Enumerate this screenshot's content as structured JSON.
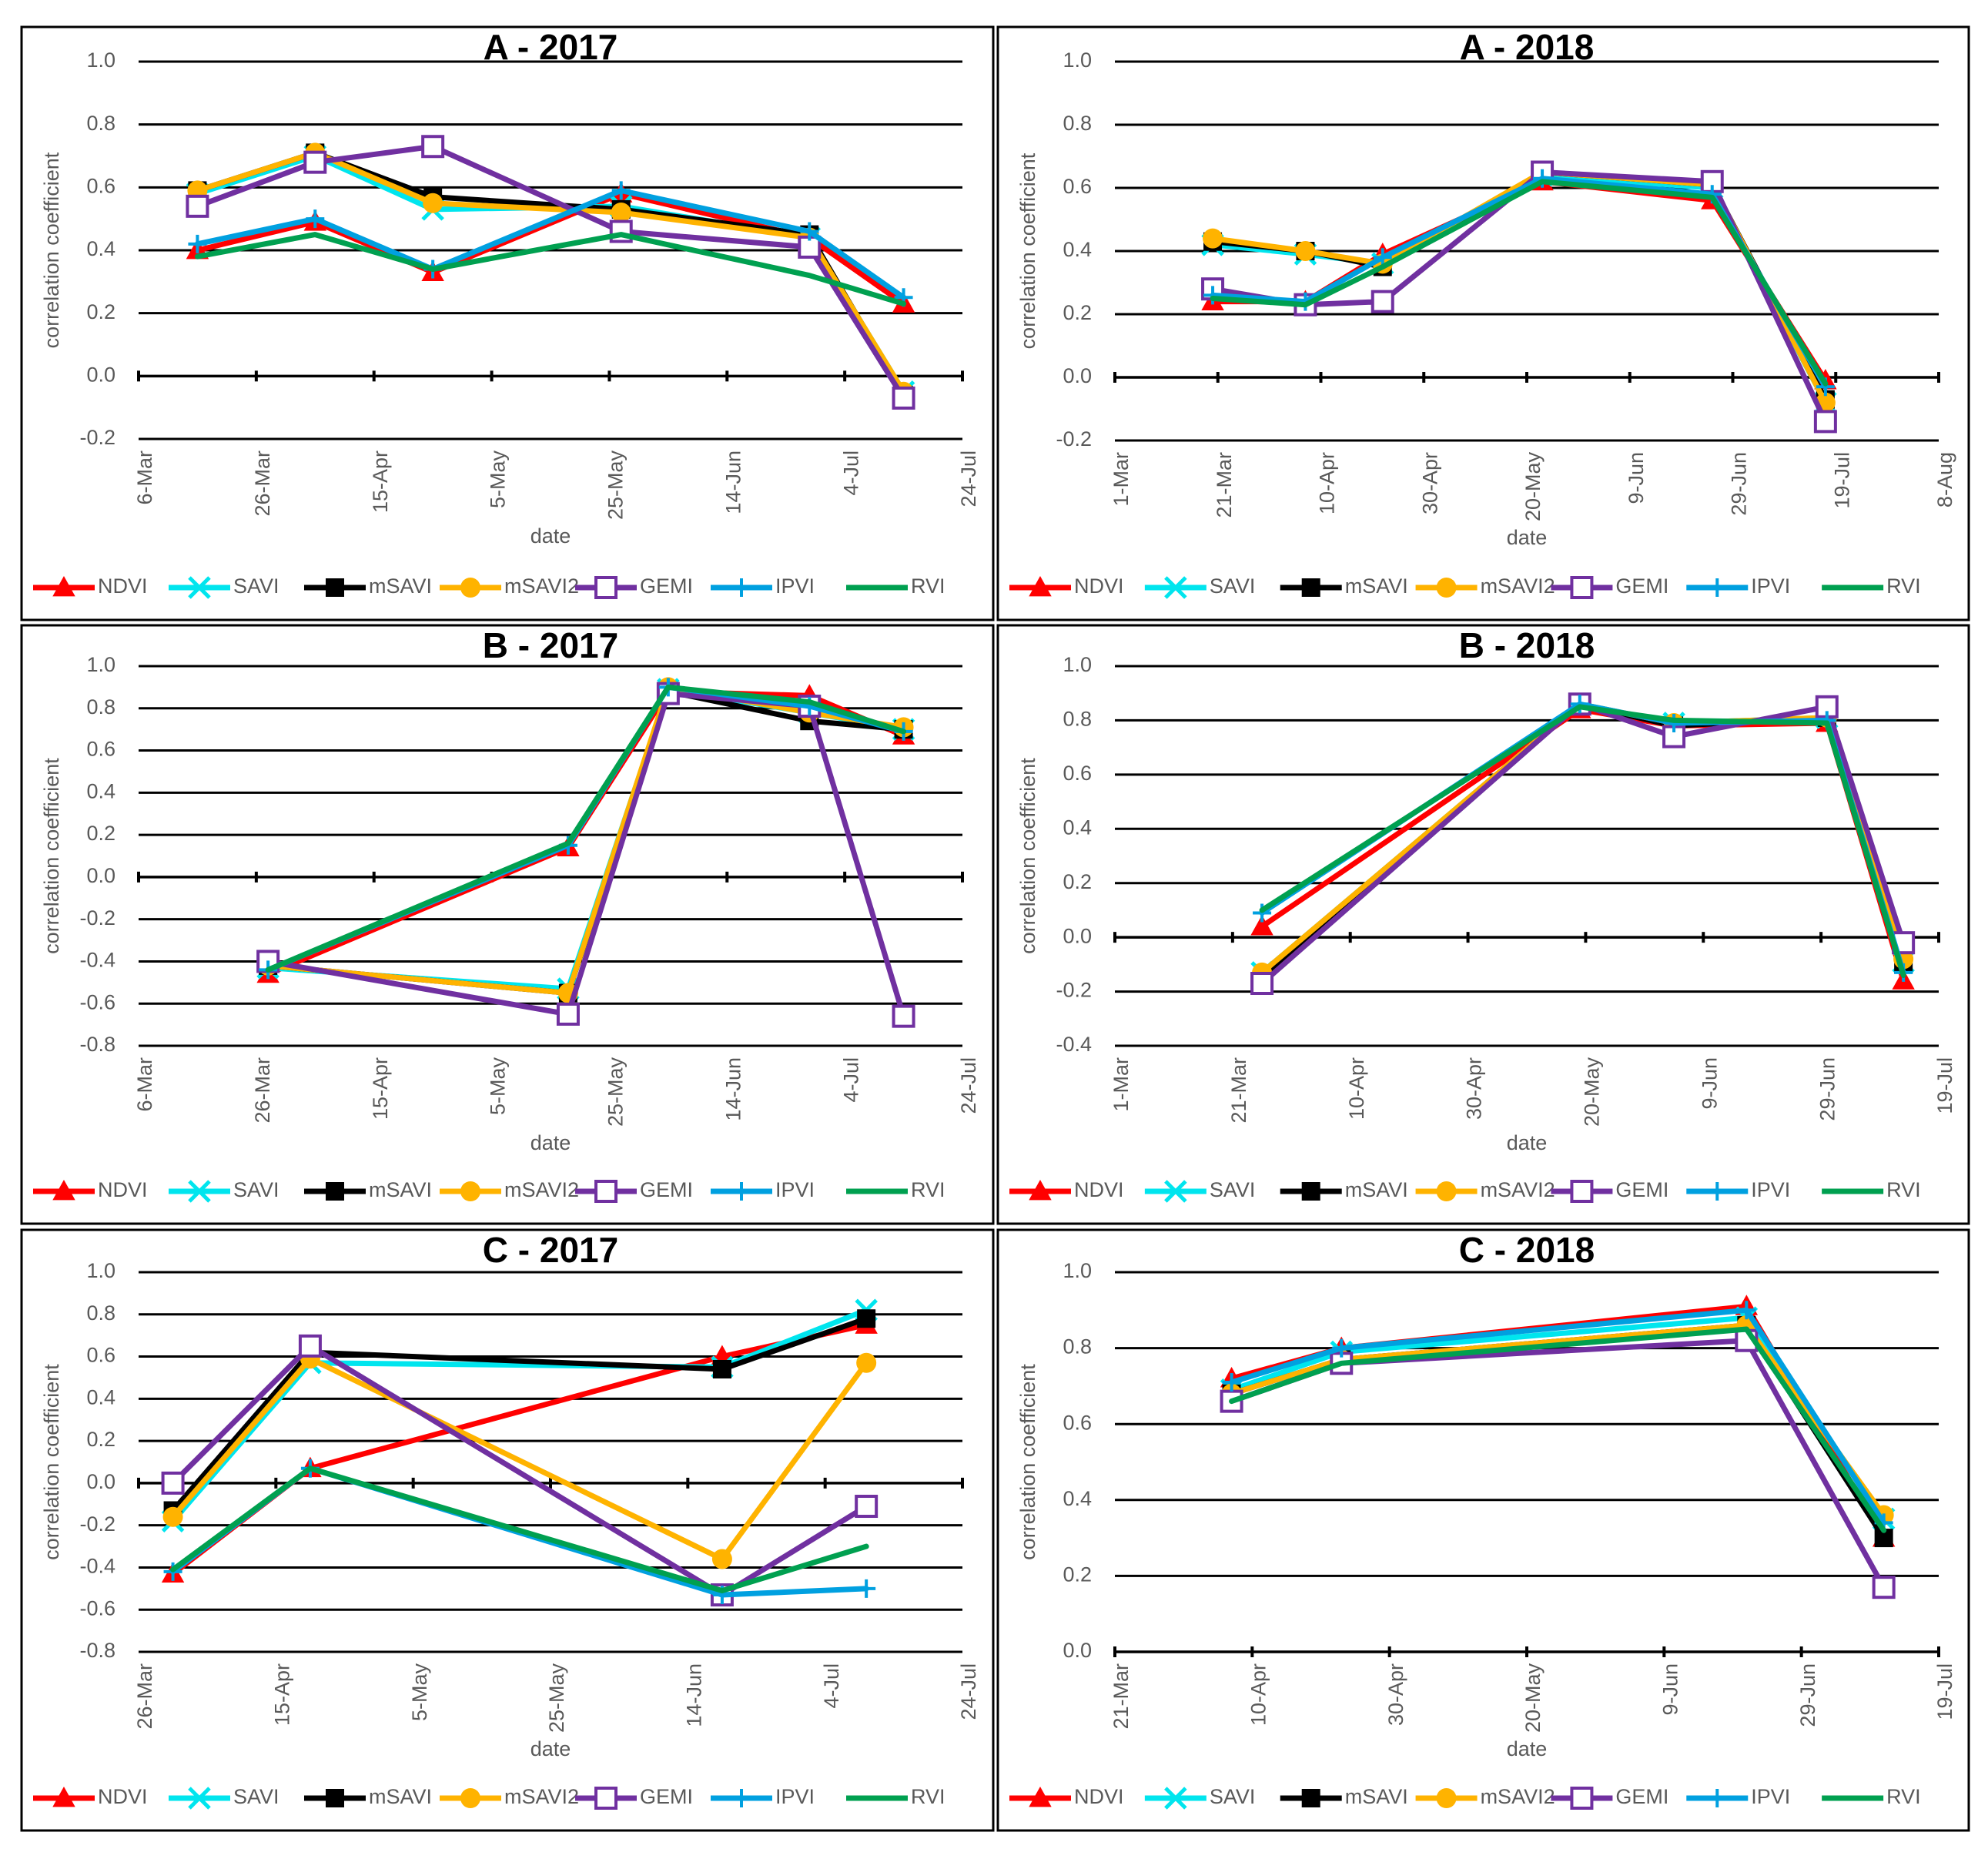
{
  "series_styles": [
    {
      "name": "NDVI",
      "color": "#FF0000",
      "marker": "triangle"
    },
    {
      "name": "SAVI",
      "color": "#00E5EE",
      "marker": "x"
    },
    {
      "name": "mSAVI",
      "color": "#000000",
      "marker": "square"
    },
    {
      "name": "mSAVI2",
      "color": "#FFB300",
      "marker": "circle"
    },
    {
      "name": "GEMI",
      "color": "#7030A0",
      "marker": "open-square"
    },
    {
      "name": "IPVI",
      "color": "#00A0E0",
      "marker": "plus"
    },
    {
      "name": "RVI",
      "color": "#00A050",
      "marker": "none"
    }
  ],
  "chart_data": [
    {
      "type": "line",
      "title": "A - 2017",
      "xlabel": "date",
      "ylabel": "correlation coefficient",
      "ylim": [
        -0.2,
        1.0
      ],
      "ytick_step": 0.2,
      "xlim": [
        0,
        140
      ],
      "x_ticks": [
        {
          "label": "6-Mar",
          "d": 0
        },
        {
          "label": "26-Mar",
          "d": 20
        },
        {
          "label": "15-Apr",
          "d": 40
        },
        {
          "label": "5-May",
          "d": 60
        },
        {
          "label": "25-May",
          "d": 80
        },
        {
          "label": "14-Jun",
          "d": 100
        },
        {
          "label": "4-Jul",
          "d": 120
        },
        {
          "label": "24-Jul",
          "d": 140
        }
      ],
      "x": [
        10,
        30,
        50,
        82,
        114,
        130
      ],
      "series": [
        {
          "name": "NDVI",
          "values": [
            0.4,
            0.49,
            0.33,
            0.58,
            0.44,
            0.23
          ]
        },
        {
          "name": "SAVI",
          "values": [
            0.58,
            0.7,
            0.53,
            0.54,
            0.44,
            -0.05
          ]
        },
        {
          "name": "mSAVI",
          "values": [
            0.59,
            0.71,
            0.57,
            0.53,
            0.45,
            -0.06
          ]
        },
        {
          "name": "mSAVI2",
          "values": [
            0.59,
            0.71,
            0.55,
            0.52,
            0.44,
            -0.05
          ]
        },
        {
          "name": "GEMI",
          "values": [
            0.54,
            0.68,
            0.73,
            0.46,
            0.41,
            -0.07
          ]
        },
        {
          "name": "IPVI",
          "values": [
            0.42,
            0.5,
            0.34,
            0.59,
            0.46,
            0.25
          ]
        },
        {
          "name": "RVI",
          "values": [
            0.38,
            0.45,
            0.34,
            0.45,
            0.32,
            0.23
          ]
        }
      ]
    },
    {
      "type": "line",
      "title": "A - 2018",
      "xlabel": "date",
      "ylabel": "correlation coefficient",
      "ylim": [
        -0.2,
        1.0
      ],
      "ytick_step": 0.2,
      "xlim": [
        0,
        160
      ],
      "x_ticks": [
        {
          "label": "1-Mar",
          "d": 0
        },
        {
          "label": "21-Mar",
          "d": 20
        },
        {
          "label": "10-Apr",
          "d": 40
        },
        {
          "label": "30-Apr",
          "d": 60
        },
        {
          "label": "20-May",
          "d": 80
        },
        {
          "label": "9-Jun",
          "d": 100
        },
        {
          "label": "29-Jun",
          "d": 120
        },
        {
          "label": "19-Jul",
          "d": 140
        },
        {
          "label": "8-Aug",
          "d": 160
        }
      ],
      "x": [
        19,
        37,
        52,
        83,
        116,
        138
      ],
      "series": [
        {
          "name": "NDVI",
          "values": [
            0.24,
            0.24,
            0.39,
            0.62,
            0.56,
            -0.01
          ]
        },
        {
          "name": "SAVI",
          "values": [
            0.42,
            0.39,
            0.36,
            0.64,
            0.6,
            -0.08
          ]
        },
        {
          "name": "mSAVI",
          "values": [
            0.43,
            0.4,
            0.35,
            0.65,
            0.61,
            -0.07
          ]
        },
        {
          "name": "mSAVI2",
          "values": [
            0.44,
            0.4,
            0.36,
            0.65,
            0.61,
            -0.08
          ]
        },
        {
          "name": "GEMI",
          "values": [
            0.28,
            0.23,
            0.24,
            0.65,
            0.62,
            -0.14
          ]
        },
        {
          "name": "IPVI",
          "values": [
            0.26,
            0.24,
            0.38,
            0.63,
            0.58,
            -0.03
          ]
        },
        {
          "name": "RVI",
          "values": [
            0.25,
            0.23,
            0.35,
            0.62,
            0.57,
            -0.02
          ]
        }
      ]
    },
    {
      "type": "line",
      "title": "B - 2017",
      "xlabel": "date",
      "ylabel": "correlation coefficient",
      "ylim": [
        -0.8,
        1.0
      ],
      "ytick_step": 0.2,
      "xlim": [
        0,
        140
      ],
      "x_ticks": [
        {
          "label": "6-Mar",
          "d": 0
        },
        {
          "label": "26-Mar",
          "d": 20
        },
        {
          "label": "15-Apr",
          "d": 40
        },
        {
          "label": "5-May",
          "d": 60
        },
        {
          "label": "25-May",
          "d": 80
        },
        {
          "label": "14-Jun",
          "d": 100
        },
        {
          "label": "4-Jul",
          "d": 120
        },
        {
          "label": "24-Jul",
          "d": 140
        }
      ],
      "x": [
        22,
        73,
        90,
        114,
        130
      ],
      "series": [
        {
          "name": "NDVI",
          "values": [
            -0.46,
            0.14,
            0.88,
            0.86,
            0.67
          ]
        },
        {
          "name": "SAVI",
          "values": [
            -0.43,
            -0.53,
            0.89,
            0.78,
            0.7
          ]
        },
        {
          "name": "mSAVI",
          "values": [
            -0.42,
            -0.55,
            0.88,
            0.74,
            0.7
          ]
        },
        {
          "name": "mSAVI2",
          "values": [
            -0.42,
            -0.55,
            0.9,
            0.78,
            0.71
          ]
        },
        {
          "name": "GEMI",
          "values": [
            -0.4,
            -0.65,
            0.87,
            0.81,
            -0.66
          ]
        },
        {
          "name": "IPVI",
          "values": [
            -0.44,
            0.15,
            0.9,
            0.81,
            0.69
          ]
        },
        {
          "name": "RVI",
          "values": [
            -0.44,
            0.16,
            0.9,
            0.83,
            0.69
          ]
        }
      ]
    },
    {
      "type": "line",
      "title": "B - 2018",
      "xlabel": "date",
      "ylabel": "correlation coefficient",
      "ylim": [
        -0.4,
        1.0
      ],
      "ytick_step": 0.2,
      "xlim": [
        0,
        140
      ],
      "x_ticks": [
        {
          "label": "1-Mar",
          "d": 0
        },
        {
          "label": "21-Mar",
          "d": 20
        },
        {
          "label": "10-Apr",
          "d": 40
        },
        {
          "label": "30-Apr",
          "d": 60
        },
        {
          "label": "20-May",
          "d": 80
        },
        {
          "label": "9-Jun",
          "d": 100
        },
        {
          "label": "29-Jun",
          "d": 120
        },
        {
          "label": "19-Jul",
          "d": 140
        }
      ],
      "x": [
        25,
        79,
        95,
        121,
        134
      ],
      "series": [
        {
          "name": "NDVI",
          "values": [
            0.04,
            0.84,
            0.78,
            0.79,
            -0.16
          ]
        },
        {
          "name": "SAVI",
          "values": [
            -0.13,
            0.86,
            0.79,
            0.81,
            -0.09
          ]
        },
        {
          "name": "mSAVI",
          "values": [
            -0.15,
            0.86,
            0.78,
            0.81,
            -0.1
          ]
        },
        {
          "name": "mSAVI2",
          "values": [
            -0.13,
            0.86,
            0.79,
            0.81,
            -0.08
          ]
        },
        {
          "name": "GEMI",
          "values": [
            -0.17,
            0.86,
            0.74,
            0.85,
            -0.02
          ]
        },
        {
          "name": "IPVI",
          "values": [
            0.09,
            0.86,
            0.79,
            0.8,
            -0.13
          ]
        },
        {
          "name": "RVI",
          "values": [
            0.1,
            0.85,
            0.8,
            0.79,
            -0.14
          ]
        }
      ]
    },
    {
      "type": "line",
      "title": "C - 2017",
      "xlabel": "date",
      "ylabel": "correlation coefficient",
      "ylim": [
        -0.8,
        1.0
      ],
      "ytick_step": 0.2,
      "xlim": [
        0,
        120
      ],
      "x_ticks": [
        {
          "label": "26-Mar",
          "d": 0
        },
        {
          "label": "15-Apr",
          "d": 20
        },
        {
          "label": "5-May",
          "d": 40
        },
        {
          "label": "25-May",
          "d": 60
        },
        {
          "label": "14-Jun",
          "d": 80
        },
        {
          "label": "4-Jul",
          "d": 100
        },
        {
          "label": "24-Jul",
          "d": 120
        }
      ],
      "x": [
        5,
        25,
        85,
        106
      ],
      "series": [
        {
          "name": "NDVI",
          "values": [
            -0.43,
            0.07,
            0.6,
            0.75
          ]
        },
        {
          "name": "SAVI",
          "values": [
            -0.18,
            0.57,
            0.55,
            0.82
          ]
        },
        {
          "name": "mSAVI",
          "values": [
            -0.13,
            0.62,
            0.54,
            0.78
          ]
        },
        {
          "name": "mSAVI2",
          "values": [
            -0.16,
            0.59,
            -0.36,
            0.57
          ]
        },
        {
          "name": "GEMI",
          "values": [
            0.0,
            0.65,
            -0.53,
            -0.11
          ]
        },
        {
          "name": "IPVI",
          "values": [
            -0.42,
            0.07,
            -0.53,
            -0.5
          ]
        },
        {
          "name": "RVI",
          "values": [
            -0.41,
            0.07,
            -0.51,
            -0.3
          ]
        }
      ]
    },
    {
      "type": "line",
      "title": "C - 2018",
      "xlabel": "date",
      "ylabel": "correlation coefficient",
      "ylim": [
        0.0,
        1.0
      ],
      "ytick_step": 0.2,
      "xlim": [
        0,
        120
      ],
      "x_ticks": [
        {
          "label": "21-Mar",
          "d": 0
        },
        {
          "label": "10-Apr",
          "d": 20
        },
        {
          "label": "30-Apr",
          "d": 40
        },
        {
          "label": "20-May",
          "d": 60
        },
        {
          "label": "9-Jun",
          "d": 80
        },
        {
          "label": "29-Jun",
          "d": 100
        },
        {
          "label": "19-Jul",
          "d": 120
        }
      ],
      "x": [
        17,
        33,
        92,
        112
      ],
      "series": [
        {
          "name": "NDVI",
          "values": [
            0.72,
            0.8,
            0.91,
            0.3
          ]
        },
        {
          "name": "SAVI",
          "values": [
            0.69,
            0.79,
            0.88,
            0.35
          ]
        },
        {
          "name": "mSAVI",
          "values": [
            0.68,
            0.77,
            0.86,
            0.3
          ]
        },
        {
          "name": "mSAVI2",
          "values": [
            0.68,
            0.77,
            0.86,
            0.36
          ]
        },
        {
          "name": "GEMI",
          "values": [
            0.66,
            0.76,
            0.82,
            0.17
          ]
        },
        {
          "name": "IPVI",
          "values": [
            0.71,
            0.8,
            0.9,
            0.34
          ]
        },
        {
          "name": "RVI",
          "values": [
            0.66,
            0.76,
            0.85,
            0.32
          ]
        }
      ]
    }
  ]
}
